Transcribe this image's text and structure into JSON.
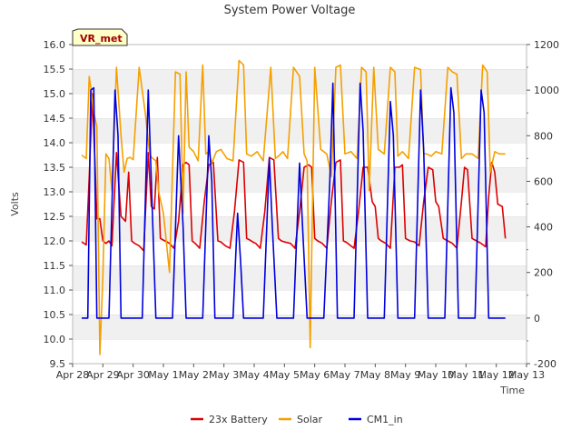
{
  "chart_data": {
    "type": "line",
    "title": "System Power Voltage",
    "xlabel": "Time",
    "ylabel": "Volts",
    "badge": "VR_met",
    "x_ticks": [
      "Apr 28",
      "Apr 29",
      "Apr 30",
      "May 1",
      "May 2",
      "May 3",
      "May 4",
      "May 5",
      "May 6",
      "May 7",
      "May 8",
      "May 9",
      "May 10",
      "May 11",
      "May 12",
      "May 13"
    ],
    "xlim": [
      0,
      15
    ],
    "ylim_left": [
      9.5,
      16.0
    ],
    "y_ticks_left": [
      "9.5",
      "10.0",
      "10.5",
      "11.0",
      "11.5",
      "12.0",
      "12.5",
      "13.0",
      "13.5",
      "14.0",
      "14.5",
      "15.0",
      "15.5",
      "16.0"
    ],
    "ylim_right": [
      -200,
      1200
    ],
    "y_ticks_right": [
      "-200",
      "0",
      "200",
      "400",
      "600",
      "800",
      "1000",
      "1200"
    ],
    "grid": "horizontal bands",
    "legend_position": "bottom",
    "series": [
      {
        "name": "23x Battery",
        "axis": "left",
        "color": "#dd0000",
        "x": [
          0.3,
          0.45,
          0.55,
          0.65,
          0.75,
          0.8,
          0.9,
          1.0,
          1.1,
          1.2,
          1.3,
          1.45,
          1.6,
          1.75,
          1.85,
          1.95,
          2.05,
          2.2,
          2.35,
          2.5,
          2.6,
          2.7,
          2.8,
          2.9,
          3.05,
          3.2,
          3.35,
          3.5,
          3.65,
          3.75,
          3.85,
          3.95,
          4.05,
          4.2,
          4.35,
          4.5,
          4.65,
          4.8,
          4.9,
          5.05,
          5.2,
          5.35,
          5.5,
          5.65,
          5.75,
          5.85,
          5.95,
          6.05,
          6.2,
          6.35,
          6.5,
          6.65,
          6.8,
          6.9,
          7.0,
          7.2,
          7.35,
          7.5,
          7.65,
          7.8,
          7.9,
          8.0,
          8.1,
          8.25,
          8.4,
          8.55,
          8.7,
          8.85,
          8.95,
          9.05,
          9.15,
          9.3,
          9.45,
          9.6,
          9.75,
          9.9,
          10.0,
          10.1,
          10.2,
          10.35,
          10.5,
          10.65,
          10.8,
          10.9,
          11.0,
          11.15,
          11.3,
          11.45,
          11.6,
          11.75,
          11.9,
          12.0,
          12.1,
          12.25,
          12.4,
          12.55,
          12.7,
          12.85,
          12.95,
          13.05,
          13.2,
          13.35,
          13.5,
          13.65,
          13.75,
          13.85,
          13.95,
          14.05,
          14.2,
          14.3
        ],
        "y": [
          11.98,
          11.92,
          13.3,
          15.0,
          13.4,
          12.45,
          12.45,
          12.0,
          11.95,
          12.0,
          11.9,
          13.8,
          12.5,
          12.4,
          13.4,
          12.0,
          11.95,
          11.9,
          11.8,
          13.8,
          12.7,
          12.65,
          13.7,
          12.05,
          12.0,
          11.95,
          11.85,
          12.4,
          13.55,
          13.6,
          13.55,
          12.0,
          11.95,
          11.85,
          12.8,
          13.55,
          13.6,
          12.0,
          11.98,
          11.9,
          11.85,
          12.6,
          13.65,
          13.6,
          12.05,
          12.02,
          11.98,
          11.95,
          11.85,
          12.6,
          13.7,
          13.65,
          12.05,
          12.0,
          11.98,
          11.95,
          11.85,
          12.6,
          13.5,
          13.55,
          13.5,
          12.05,
          12.0,
          11.95,
          11.85,
          12.8,
          13.6,
          13.65,
          12.0,
          11.97,
          11.92,
          11.85,
          12.6,
          13.5,
          13.5,
          12.8,
          12.7,
          12.05,
          12.0,
          11.95,
          11.85,
          13.5,
          13.5,
          13.55,
          12.05,
          12.0,
          11.98,
          11.9,
          12.8,
          13.5,
          13.45,
          12.8,
          12.7,
          12.05,
          12.0,
          11.95,
          11.85,
          12.8,
          13.5,
          13.45,
          12.05,
          12.0,
          11.95,
          11.88,
          12.9,
          13.6,
          13.4,
          12.75,
          12.7,
          12.05
        ]
      },
      {
        "name": "Solar",
        "axis": "right",
        "color": "#f5a000",
        "x": [
          0.3,
          0.45,
          0.55,
          0.6,
          0.7,
          0.8,
          0.9,
          1.0,
          1.1,
          1.2,
          1.3,
          1.45,
          1.6,
          1.7,
          1.8,
          1.9,
          2.0,
          2.2,
          2.4,
          2.55,
          2.65,
          2.75,
          2.85,
          3.0,
          3.2,
          3.4,
          3.55,
          3.65,
          3.75,
          3.85,
          4.0,
          4.15,
          4.3,
          4.4,
          4.5,
          4.6,
          4.75,
          4.9,
          5.1,
          5.3,
          5.5,
          5.65,
          5.75,
          5.9,
          6.1,
          6.3,
          6.55,
          6.7,
          6.8,
          6.95,
          7.1,
          7.3,
          7.5,
          7.65,
          7.75,
          7.85,
          8.0,
          8.2,
          8.4,
          8.55,
          8.7,
          8.85,
          9.0,
          9.2,
          9.4,
          9.55,
          9.7,
          9.8,
          9.95,
          10.1,
          10.3,
          10.5,
          10.65,
          10.75,
          10.9,
          11.1,
          11.3,
          11.5,
          11.6,
          11.7,
          11.85,
          12.0,
          12.2,
          12.4,
          12.55,
          12.7,
          12.85,
          13.0,
          13.2,
          13.4,
          13.55,
          13.7,
          13.8,
          13.95,
          14.1,
          14.3
        ],
        "y": [
          715,
          700,
          1060,
          1010,
          900,
          840,
          -160,
          180,
          720,
          700,
          560,
          1100,
          800,
          640,
          700,
          705,
          695,
          1100,
          900,
          715,
          700,
          690,
          550,
          460,
          200,
          1080,
          1070,
          460,
          1080,
          750,
          730,
          690,
          1110,
          720,
          730,
          680,
          730,
          740,
          700,
          690,
          1130,
          1110,
          720,
          710,
          730,
          690,
          1100,
          700,
          710,
          730,
          700,
          1100,
          1060,
          720,
          690,
          -130,
          1100,
          740,
          720,
          620,
          1100,
          1110,
          720,
          730,
          700,
          1100,
          1080,
          560,
          1100,
          740,
          720,
          1100,
          1080,
          710,
          730,
          700,
          1100,
          1090,
          720,
          720,
          710,
          730,
          720,
          1100,
          1080,
          1070,
          700,
          720,
          720,
          700,
          1110,
          1080,
          640,
          730,
          720,
          720
        ]
      },
      {
        "name": "CM1_in",
        "axis": "right",
        "color": "#0000dd",
        "x": [
          0.3,
          0.45,
          0.5,
          0.6,
          0.7,
          0.8,
          0.95,
          1.05,
          1.2,
          1.4,
          1.5,
          1.6,
          1.75,
          1.85,
          2.05,
          2.3,
          2.5,
          2.6,
          2.75,
          2.85,
          3.05,
          3.3,
          3.5,
          3.65,
          3.75,
          3.85,
          3.95,
          4.1,
          4.3,
          4.5,
          4.6,
          4.7,
          4.85,
          5.05,
          5.3,
          5.45,
          5.55,
          5.65,
          5.75,
          5.85,
          6.05,
          6.3,
          6.5,
          6.6,
          6.75,
          6.85,
          7.05,
          7.3,
          7.5,
          7.6,
          7.75,
          7.85,
          8.05,
          8.3,
          8.5,
          8.6,
          8.75,
          8.85,
          9.05,
          9.3,
          9.5,
          9.6,
          9.75,
          9.85,
          10.05,
          10.3,
          10.5,
          10.6,
          10.75,
          10.85,
          11.05,
          11.3,
          11.5,
          11.6,
          11.75,
          11.85,
          12.05,
          12.3,
          12.5,
          12.6,
          12.75,
          12.85,
          13.05,
          13.3,
          13.5,
          13.6,
          13.75,
          13.85,
          14.05,
          14.3
        ],
        "y": [
          0,
          0,
          0,
          1000,
          1010,
          0,
          0,
          0,
          0,
          1000,
          800,
          0,
          0,
          0,
          0,
          0,
          1000,
          600,
          0,
          0,
          0,
          0,
          800,
          400,
          0,
          0,
          0,
          0,
          0,
          800,
          600,
          0,
          0,
          0,
          0,
          460,
          250,
          0,
          0,
          0,
          0,
          0,
          700,
          400,
          0,
          0,
          0,
          0,
          680,
          400,
          0,
          0,
          0,
          0,
          600,
          1030,
          0,
          0,
          0,
          0,
          1030,
          820,
          0,
          0,
          0,
          0,
          950,
          800,
          0,
          0,
          0,
          0,
          1000,
          740,
          0,
          0,
          0,
          0,
          1010,
          900,
          0,
          0,
          0,
          0,
          1000,
          900,
          0,
          0,
          0,
          0
        ]
      }
    ]
  }
}
